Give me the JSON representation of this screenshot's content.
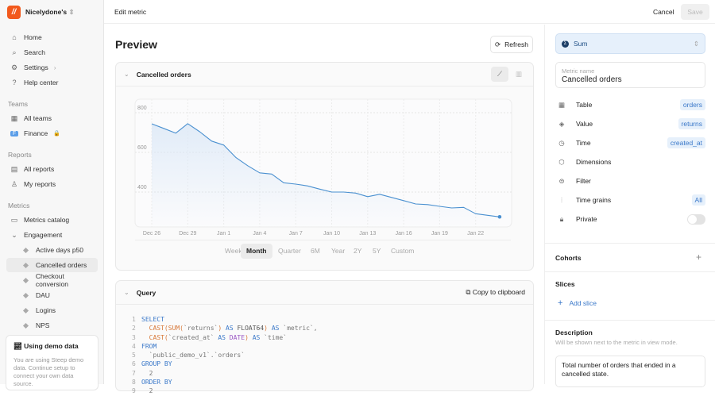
{
  "sidebar": {
    "workspace": "Nicelydone's",
    "logo": "//",
    "nav": [
      {
        "label": "Home",
        "icon": "home-icon"
      },
      {
        "label": "Search",
        "icon": "search-icon"
      },
      {
        "label": "Settings",
        "icon": "settings-icon"
      },
      {
        "label": "Help center",
        "icon": "help-icon"
      }
    ],
    "teams_label": "Teams",
    "teams": [
      {
        "label": "All teams"
      },
      {
        "label": "Finance",
        "badge": "F"
      }
    ],
    "reports_label": "Reports",
    "reports": [
      {
        "label": "All reports"
      },
      {
        "label": "My reports"
      }
    ],
    "metrics_label": "Metrics",
    "catalog": "Metrics catalog",
    "group": "Engagement",
    "metrics": [
      "Active days p50",
      "Cancelled orders",
      "Checkout conversion",
      "DAU",
      "Logins",
      "NPS"
    ],
    "selected": "Cancelled orders",
    "demo": {
      "title": "Using demo data",
      "text": "You are using Steep demo data. Continue setup to connect your own data source."
    }
  },
  "topbar": {
    "title": "Edit metric",
    "cancel": "Cancel",
    "save": "Save"
  },
  "main": {
    "preview": "Preview",
    "refresh": "Refresh",
    "chart_title": "Cancelled orders",
    "grains": [
      "Week",
      "Month",
      "Quarter",
      "6M",
      "Year",
      "2Y",
      "5Y",
      "Custom"
    ],
    "active_grain": "Month",
    "query_title": "Query",
    "copy": "Copy to clipboard",
    "code": [
      [
        [
          "k",
          "SELECT"
        ]
      ],
      [
        [
          "n",
          "  "
        ],
        [
          "f",
          "CAST(SUM("
        ],
        [
          "s",
          "`returns`"
        ],
        [
          "f",
          ")"
        ],
        [
          "k",
          " AS "
        ],
        [
          "n",
          "FLOAT64"
        ],
        [
          "f",
          ")"
        ],
        [
          "k",
          " AS "
        ],
        [
          "s",
          "`metric`,"
        ]
      ],
      [
        [
          "n",
          "  "
        ],
        [
          "f",
          "CAST("
        ],
        [
          "s",
          "`created_at`"
        ],
        [
          "k",
          " AS "
        ],
        [
          "p",
          "DATE"
        ],
        [
          "f",
          ")"
        ],
        [
          "k",
          " AS "
        ],
        [
          "s",
          "`time`"
        ]
      ],
      [
        [
          "k",
          "FROM"
        ]
      ],
      [
        [
          "s",
          "  `public_demo_v1`.`orders`"
        ]
      ],
      [
        [
          "k",
          "GROUP BY"
        ]
      ],
      [
        [
          "s",
          "  2"
        ]
      ],
      [
        [
          "k",
          "ORDER BY"
        ]
      ],
      [
        [
          "s",
          "  2"
        ]
      ]
    ]
  },
  "chart_data": {
    "type": "line",
    "title": "",
    "xlabel": "",
    "ylabel": "",
    "grid": true,
    "ylim": [
      260,
      840
    ],
    "y_ticks": [
      400,
      600,
      800
    ],
    "x_ticks": [
      "Dec 26",
      "Dec 29",
      "Jan 1",
      "Jan 4",
      "Jan 7",
      "Jan 10",
      "Jan 13",
      "Jan 16",
      "Jan 19",
      "Jan 22"
    ],
    "x": [
      "Dec 26",
      "Dec 27",
      "Dec 28",
      "Dec 29",
      "Dec 30",
      "Dec 31",
      "Jan 1",
      "Jan 2",
      "Jan 3",
      "Jan 4",
      "Jan 5",
      "Jan 6",
      "Jan 7",
      "Jan 8",
      "Jan 9",
      "Jan 10",
      "Jan 11",
      "Jan 12",
      "Jan 13",
      "Jan 14",
      "Jan 15",
      "Jan 16",
      "Jan 17",
      "Jan 18",
      "Jan 19",
      "Jan 20",
      "Jan 21",
      "Jan 22",
      "Jan 23",
      "Jan 24"
    ],
    "values": [
      744,
      721,
      697,
      745,
      704,
      657,
      637,
      575,
      533,
      497,
      491,
      447,
      440,
      431,
      415,
      400,
      400,
      395,
      377,
      389,
      373,
      357,
      340,
      337,
      328,
      320,
      323,
      291,
      283,
      275
    ],
    "color": "#4a90d0"
  },
  "right": {
    "aggregation": "Sum",
    "metric_name_label": "Metric name",
    "metric_name": "Cancelled orders",
    "fields": [
      {
        "label": "Table",
        "value": "orders",
        "icon": "table-icon"
      },
      {
        "label": "Value",
        "value": "returns",
        "icon": "value-icon"
      },
      {
        "label": "Time",
        "value": "created_at",
        "icon": "clock-icon"
      },
      {
        "label": "Dimensions",
        "icon": "dimensions-icon"
      },
      {
        "label": "Filter",
        "icon": "filter-icon"
      },
      {
        "label": "Time grains",
        "value": "All",
        "icon": "time-grains-icon"
      },
      {
        "label": "Private",
        "icon": "lock-icon",
        "toggle": false
      }
    ],
    "cohorts": "Cohorts",
    "slices": "Slices",
    "add_slice": "Add slice",
    "description_title": "Description",
    "description_hint": "Will be shown next to the metric in view mode.",
    "description": "Total number of orders that ended in a cancelled state."
  }
}
